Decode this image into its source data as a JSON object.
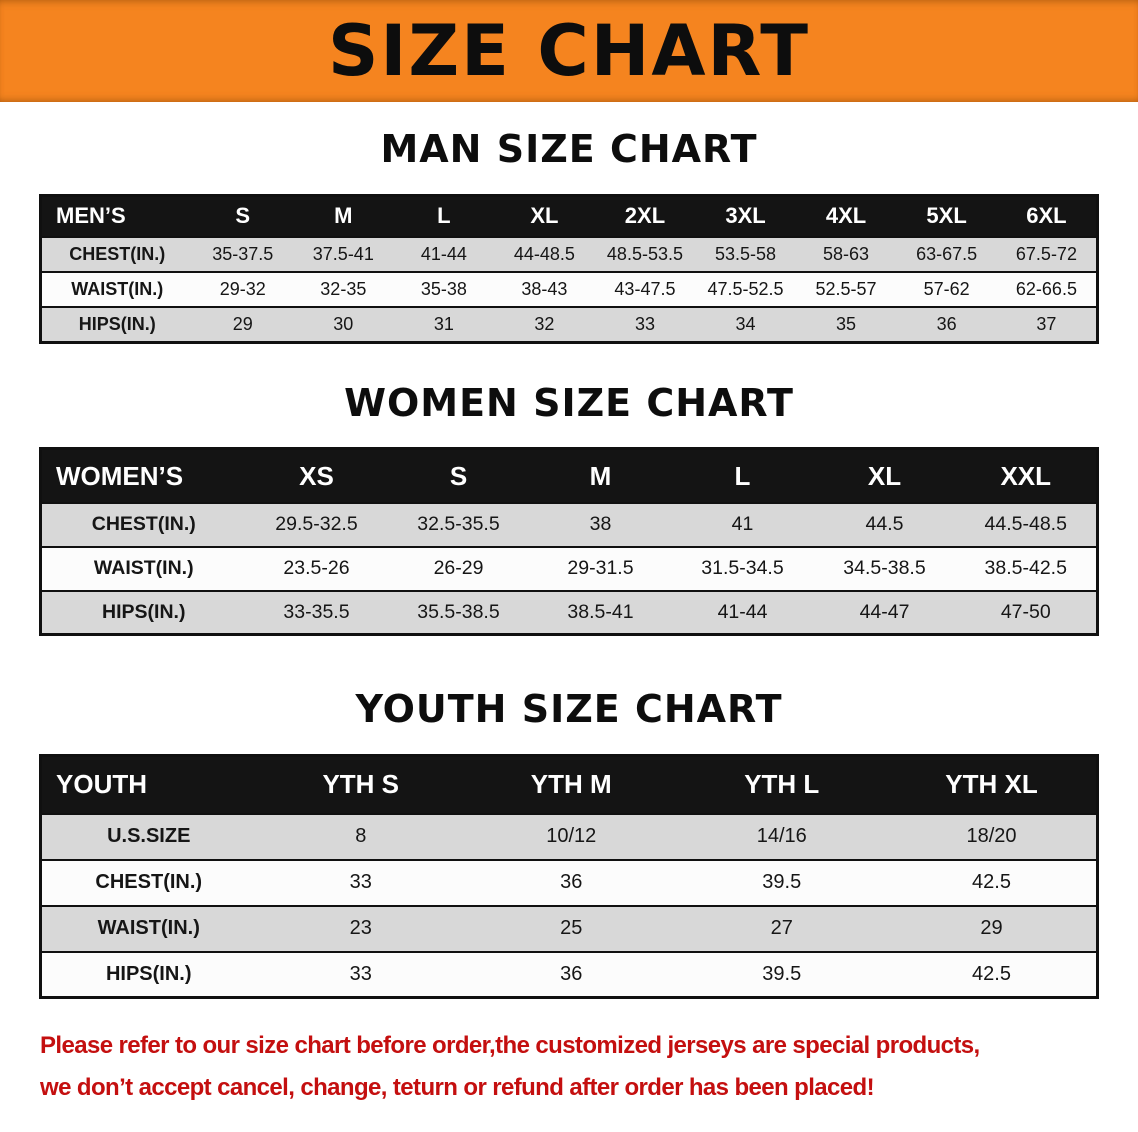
{
  "banner": {
    "title": "SIZE CHART"
  },
  "colors": {
    "banner_bg": "#f5841f",
    "header_bg": "#141414",
    "row_shade": "#d8d8d8",
    "note_red": "#c40f0f"
  },
  "men_chart": {
    "heading": "MAN SIZE CHART",
    "table": {
      "header": [
        "MEN’S",
        "S",
        "M",
        "L",
        "XL",
        "2XL",
        "3XL",
        "4XL",
        "5XL",
        "6XL"
      ],
      "rows": [
        {
          "label": "CHEST(IN.)",
          "values": [
            "35-37.5",
            "37.5-41",
            "41-44",
            "44-48.5",
            "48.5-53.5",
            "53.5-58",
            "58-63",
            "63-67.5",
            "67.5-72"
          ]
        },
        {
          "label": "WAIST(IN.)",
          "values": [
            "29-32",
            "32-35",
            "35-38",
            "38-43",
            "43-47.5",
            "47.5-52.5",
            "52.5-57",
            "57-62",
            "62-66.5"
          ]
        },
        {
          "label": "HIPS(IN.)",
          "values": [
            "29",
            "30",
            "31",
            "32",
            "33",
            "34",
            "35",
            "36",
            "37"
          ]
        }
      ]
    }
  },
  "women_chart": {
    "heading": "WOMEN SIZE CHART",
    "table": {
      "header": [
        "WOMEN’S",
        "XS",
        "S",
        "M",
        "L",
        "XL",
        "XXL"
      ],
      "rows": [
        {
          "label": "CHEST(IN.)",
          "values": [
            "29.5-32.5",
            "32.5-35.5",
            "38",
            "41",
            "44.5",
            "44.5-48.5"
          ]
        },
        {
          "label": "WAIST(IN.)",
          "values": [
            "23.5-26",
            "26-29",
            "29-31.5",
            "31.5-34.5",
            "34.5-38.5",
            "38.5-42.5"
          ]
        },
        {
          "label": "HIPS(IN.)",
          "values": [
            "33-35.5",
            "35.5-38.5",
            "38.5-41",
            "41-44",
            "44-47",
            "47-50"
          ]
        }
      ]
    }
  },
  "youth_chart": {
    "heading": "YOUTH SIZE CHART",
    "table": {
      "header": [
        "YOUTH",
        "YTH S",
        "YTH M",
        "YTH L",
        "YTH XL"
      ],
      "rows": [
        {
          "label": "U.S.SIZE",
          "values": [
            "8",
            "10/12",
            "14/16",
            "18/20"
          ]
        },
        {
          "label": "CHEST(IN.)",
          "values": [
            "33",
            "36",
            "39.5",
            "42.5"
          ]
        },
        {
          "label": "WAIST(IN.)",
          "values": [
            "23",
            "25",
            "27",
            "29"
          ]
        },
        {
          "label": "HIPS(IN.)",
          "values": [
            "33",
            "36",
            "39.5",
            "42.5"
          ]
        }
      ]
    }
  },
  "note": {
    "line1": "Please refer to our size chart before order,the customized jerseys are special products,",
    "line2": "we don’t accept cancel, change, teturn or refund after order has been placed!"
  }
}
